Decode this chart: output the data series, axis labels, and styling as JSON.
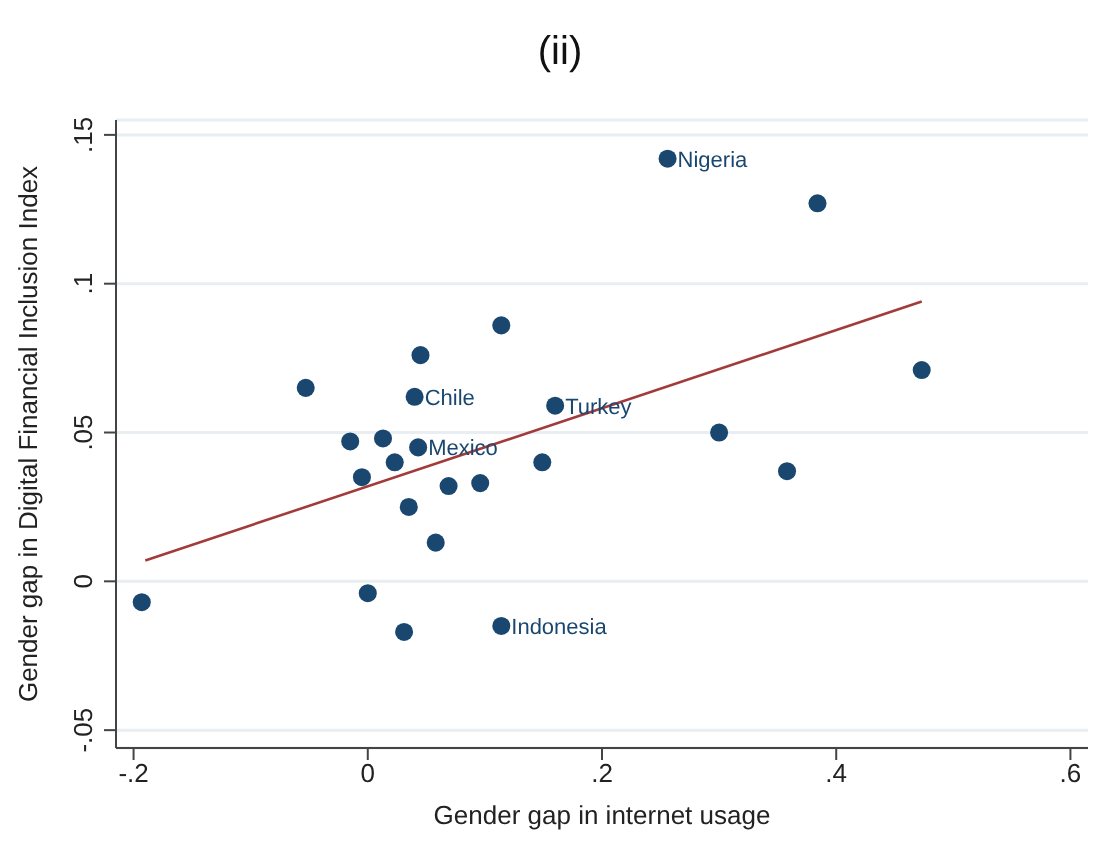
{
  "chart_data": {
    "type": "scatter",
    "title": "(ii)",
    "xlabel": "Gender gap in internet usage",
    "ylabel": "Gender gap in Digital Financial Inclusion Index",
    "xlim": [
      -0.215,
      0.615
    ],
    "xticks": [
      {
        "value": -0.2,
        "label": "-.2"
      },
      0,
      {
        "value": 0.2,
        "label": ".2"
      },
      {
        "value": 0.4,
        "label": ".4"
      },
      {
        "value": 0.6,
        "label": ".6"
      }
    ],
    "ylim": [
      -0.056,
      0.155
    ],
    "yticks": [
      {
        "value": -0.05,
        "label": "-.05"
      },
      0,
      {
        "value": 0.05,
        "label": ".05"
      },
      {
        "value": 0.1,
        "label": ".1"
      },
      {
        "value": 0.15,
        "label": ".15"
      }
    ],
    "grid": "y",
    "legend": false,
    "series": [
      {
        "color": "#1a476f",
        "marker": "circle",
        "x": [
          -0.193,
          -0.053,
          -0.015,
          0.013,
          -0.005,
          0.023,
          0.04,
          0.043,
          0.045,
          0.035,
          0,
          0.031,
          0.058,
          0.069,
          0.096,
          0.114,
          0.114,
          0.149,
          0.16,
          0.256,
          0.3,
          0.358,
          0.384,
          0.473
        ],
        "values": [
          -0.007,
          0.065,
          0.047,
          0.048,
          0.035,
          0.04,
          0.062,
          0.045,
          0.076,
          0.025,
          -0.004,
          -0.017,
          0.013,
          0.032,
          0.033,
          0.086,
          -0.015,
          0.04,
          0.059,
          0.142,
          0.05,
          0.037,
          0.127,
          0.071
        ]
      },
      {
        "type": "line",
        "color": "#a23b3b",
        "marker": "none",
        "x": [
          -0.19,
          0.473
        ],
        "values": [
          0.007,
          0.094
        ]
      }
    ],
    "annotations": [
      {
        "text": "Nigeria",
        "x": 0.256,
        "y": 0.142
      },
      {
        "text": "Chile",
        "x": 0.04,
        "y": 0.062
      },
      {
        "text": "Turkey",
        "x": 0.16,
        "y": 0.059
      },
      {
        "text": "Mexico",
        "x": 0.043,
        "y": 0.045
      },
      {
        "text": "Indonesia",
        "x": 0.114,
        "y": -0.015
      }
    ]
  }
}
